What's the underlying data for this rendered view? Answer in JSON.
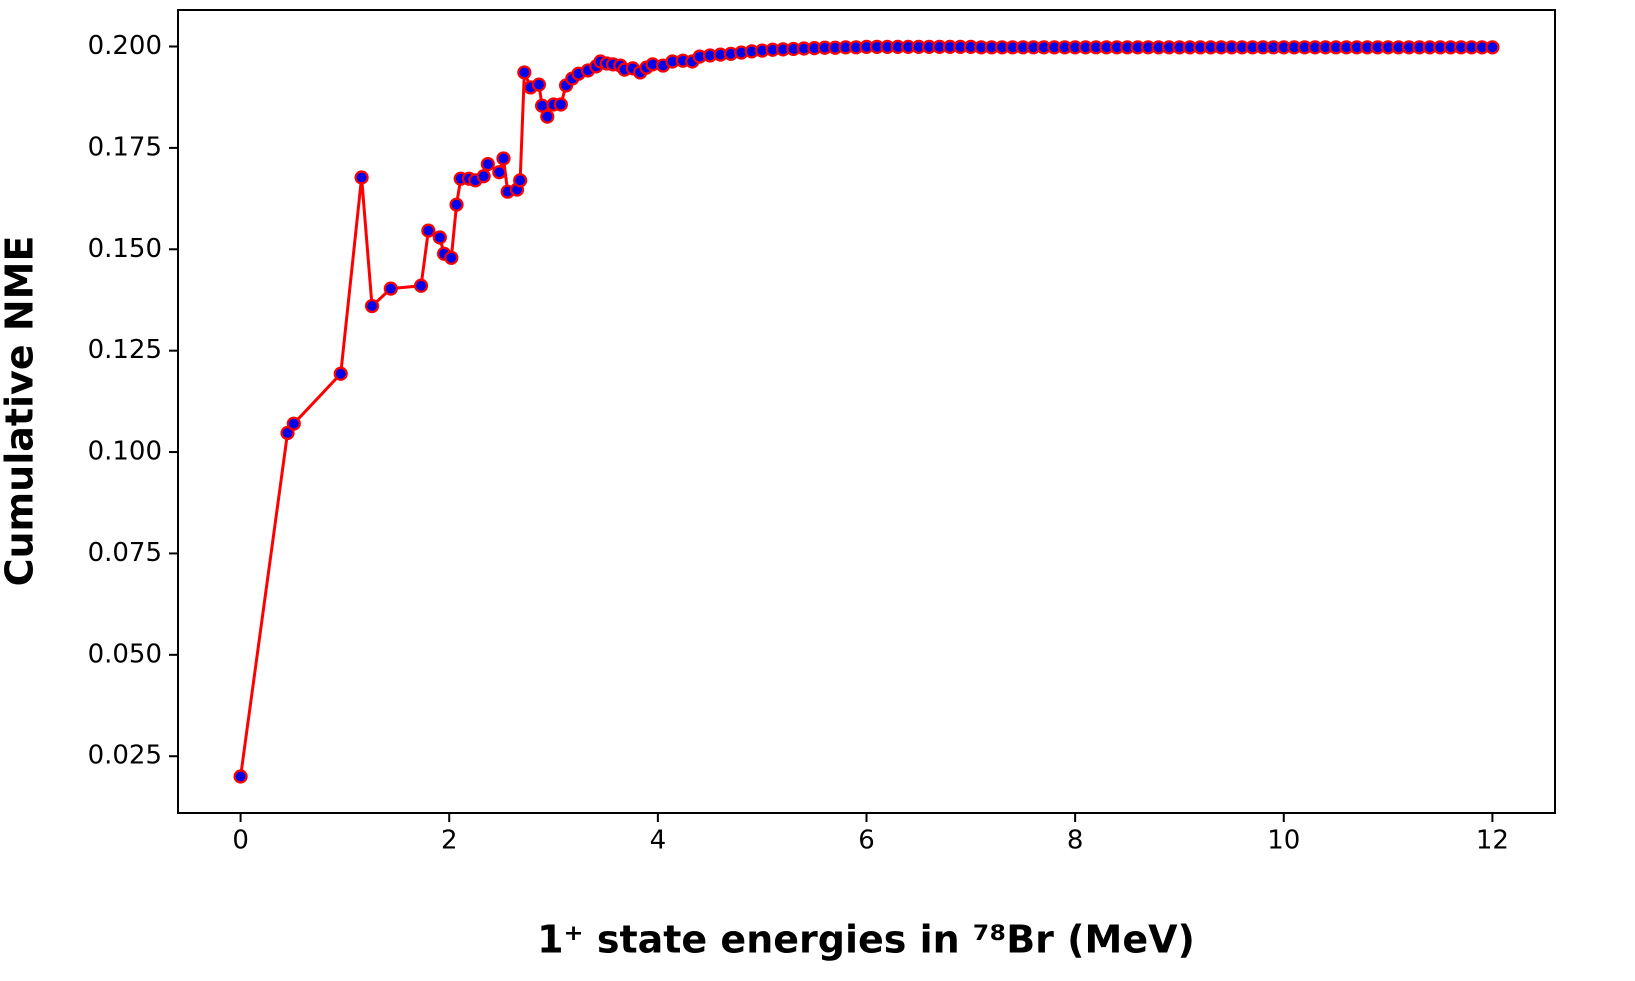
{
  "chart_data": {
    "type": "line",
    "xlabel": "1⁺ state energies in ⁷⁸Br (MeV)",
    "ylabel": "Cumulative NME",
    "color": "#ff0000",
    "marker_color": "#0000ee",
    "xlim": [
      -0.6,
      12.6
    ],
    "ylim": [
      0.011,
      0.209
    ],
    "xticks": [
      0,
      2,
      4,
      6,
      8,
      10,
      12
    ],
    "yticks": [
      0.025,
      {
        "value": 0.05,
        "label": "0.050"
      },
      0.075,
      {
        "value": 0.1,
        "label": "0.100"
      },
      0.125,
      {
        "value": 0.15,
        "label": "0.150"
      },
      0.175,
      {
        "value": 0.2,
        "label": "0.200"
      }
    ],
    "x": [
      0,
      0.45,
      0.51,
      0.96,
      1.16,
      1.26,
      1.44,
      1.73,
      1.8,
      1.91,
      1.95,
      2.02,
      2.07,
      2.11,
      2.19,
      2.25,
      2.33,
      2.37,
      2.48,
      2.52,
      2.56,
      2.65,
      2.68,
      2.72,
      2.78,
      2.86,
      2.89,
      2.94,
      3.0,
      3.07,
      3.12,
      3.18,
      3.24,
      3.33,
      3.41,
      3.45,
      3.51,
      3.57,
      3.64,
      3.68,
      3.76,
      3.83,
      3.89,
      3.95,
      4.05,
      4.14,
      4.24,
      4.33,
      4.4,
      4.5,
      4.6,
      4.7,
      4.8,
      4.9,
      5.0,
      5.1,
      5.2,
      5.3,
      5.4,
      5.5,
      5.6,
      5.7,
      5.8,
      5.9,
      6.0,
      6.1,
      6.2,
      6.3,
      6.4,
      6.5,
      6.6,
      6.7,
      6.8,
      6.9,
      7.0,
      7.1,
      7.2,
      7.3,
      7.4,
      7.5,
      7.6,
      7.7,
      7.8,
      7.9,
      8.0,
      8.1,
      8.2,
      8.3,
      8.4,
      8.5,
      8.6,
      8.7,
      8.8,
      8.9,
      9.0,
      9.1,
      9.2,
      9.3,
      9.4,
      9.5,
      9.6,
      9.7,
      9.8,
      9.9,
      10.0,
      10.1,
      10.2,
      10.3,
      10.4,
      10.5,
      10.6,
      10.7,
      10.8,
      10.9,
      11.0,
      11.1,
      11.2,
      11.3,
      11.4,
      11.5,
      11.6,
      11.7,
      11.8,
      11.9,
      12.0
    ],
    "values": [
      0.02,
      0.1047,
      0.107,
      0.1193,
      0.1677,
      0.136,
      0.1403,
      0.141,
      0.1546,
      0.1529,
      0.1489,
      0.1479,
      0.161,
      0.1674,
      0.1674,
      0.167,
      0.168,
      0.171,
      0.169,
      0.1724,
      0.1642,
      0.1647,
      0.167,
      0.1936,
      0.1899,
      0.1906,
      0.1854,
      0.1827,
      0.1857,
      0.1857,
      0.1904,
      0.1921,
      0.1933,
      0.1941,
      0.1951,
      0.1963,
      0.1958,
      0.1956,
      0.1953,
      0.1943,
      0.1946,
      0.1936,
      0.1948,
      0.1956,
      0.1953,
      0.1963,
      0.1965,
      0.1963,
      0.1975,
      0.1978,
      0.198,
      0.1982,
      0.1985,
      0.1988,
      0.199,
      0.1992,
      0.1993,
      0.1994,
      0.1995,
      0.1996,
      0.1997,
      0.1997,
      0.1998,
      0.1998,
      0.1999,
      0.1999,
      0.1999,
      0.1999,
      0.1999,
      0.1999,
      0.1999,
      0.1999,
      0.1999,
      0.1999,
      0.1999,
      0.1998,
      0.1998,
      0.1998,
      0.1998,
      0.1998,
      0.1998,
      0.1998,
      0.1998,
      0.1998,
      0.1998,
      0.1998,
      0.1998,
      0.1998,
      0.1998,
      0.1998,
      0.1998,
      0.1998,
      0.1998,
      0.1998,
      0.1998,
      0.1998,
      0.1998,
      0.1998,
      0.1998,
      0.1998,
      0.1998,
      0.1998,
      0.1998,
      0.1998,
      0.1998,
      0.1998,
      0.1998,
      0.1998,
      0.1998,
      0.1998,
      0.1998,
      0.1998,
      0.1998,
      0.1998,
      0.1998,
      0.1998,
      0.1998,
      0.1998,
      0.1998,
      0.1998,
      0.1998,
      0.1998,
      0.1998,
      0.1998,
      0.1998
    ]
  }
}
